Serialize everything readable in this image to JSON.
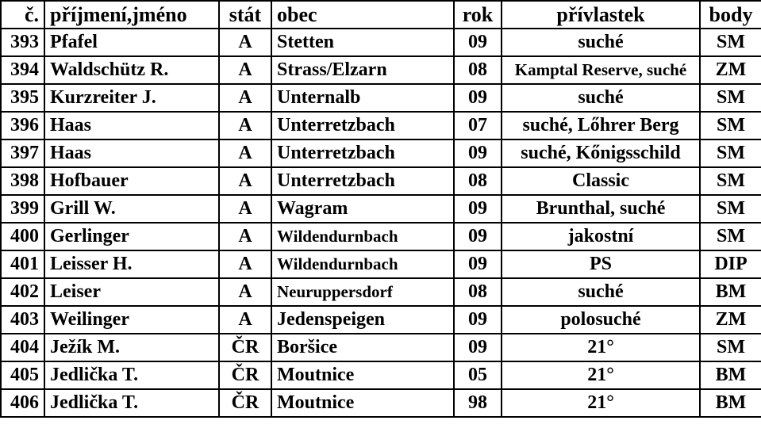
{
  "headers": {
    "num": "č.",
    "name": "příjmení,jméno",
    "stat": "stát",
    "obec": "obec",
    "rok": "rok",
    "priv": "přívlastek",
    "body": "body"
  },
  "rows": [
    {
      "num": "393",
      "name": "Pfafel",
      "stat": "A",
      "obec": "Stetten",
      "obec_small": false,
      "rok": "09",
      "priv": "suché",
      "priv_small": false,
      "body": "SM"
    },
    {
      "num": "394",
      "name": "Waldschütz R.",
      "stat": "A",
      "obec": "Strass/Elzarn",
      "obec_small": false,
      "rok": "08",
      "priv": "Kamptal Reserve, suché",
      "priv_small": true,
      "body": "ZM"
    },
    {
      "num": "395",
      "name": "Kurzreiter J.",
      "stat": "A",
      "obec": "Unternalb",
      "obec_small": false,
      "rok": "09",
      "priv": "suché",
      "priv_small": false,
      "body": "SM"
    },
    {
      "num": "396",
      "name": "Haas",
      "stat": "A",
      "obec": "Unterretzbach",
      "obec_small": false,
      "rok": "07",
      "priv": "suché, Lőhrer Berg",
      "priv_small": false,
      "body": "SM"
    },
    {
      "num": "397",
      "name": "Haas",
      "stat": "A",
      "obec": "Unterretzbach",
      "obec_small": false,
      "rok": "09",
      "priv": "suché, Kőnigsschild",
      "priv_small": false,
      "body": "SM"
    },
    {
      "num": "398",
      "name": "Hofbauer",
      "stat": "A",
      "obec": "Unterretzbach",
      "obec_small": false,
      "rok": "08",
      "priv": "Classic",
      "priv_small": false,
      "body": "SM"
    },
    {
      "num": "399",
      "name": "Grill W.",
      "stat": "A",
      "obec": "Wagram",
      "obec_small": false,
      "rok": "09",
      "priv": "Brunthal, suché",
      "priv_small": false,
      "body": "SM"
    },
    {
      "num": "400",
      "name": "Gerlinger",
      "stat": "A",
      "obec": "Wildendurnbach",
      "obec_small": true,
      "rok": "09",
      "priv": "jakostní",
      "priv_small": false,
      "body": "SM"
    },
    {
      "num": "401",
      "name": "Leisser H.",
      "stat": "A",
      "obec": "Wildendurnbach",
      "obec_small": true,
      "rok": "09",
      "priv": "PS",
      "priv_small": false,
      "body": "DIP"
    },
    {
      "num": "402",
      "name": "Leiser",
      "stat": "A",
      "obec": "Neuruppersdorf",
      "obec_small": true,
      "rok": "08",
      "priv": "suché",
      "priv_small": false,
      "body": "BM"
    },
    {
      "num": "403",
      "name": "Weilinger",
      "stat": "A",
      "obec": "Jedenspeigen",
      "obec_small": false,
      "rok": "09",
      "priv": "polosuché",
      "priv_small": false,
      "body": "ZM"
    },
    {
      "num": "404",
      "name": "Ježík M.",
      "stat": "ČR",
      "obec": "Boršice",
      "obec_small": false,
      "rok": "09",
      "priv": "21°",
      "priv_small": false,
      "body": "SM"
    },
    {
      "num": "405",
      "name": "Jedlička T.",
      "stat": "ČR",
      "obec": "Moutnice",
      "obec_small": false,
      "rok": "05",
      "priv": "21°",
      "priv_small": false,
      "body": "BM"
    },
    {
      "num": "406",
      "name": "Jedlička T.",
      "stat": "ČR",
      "obec": "Moutnice",
      "obec_small": false,
      "rok": "98",
      "priv": "21°",
      "priv_small": false,
      "body": "BM"
    }
  ]
}
